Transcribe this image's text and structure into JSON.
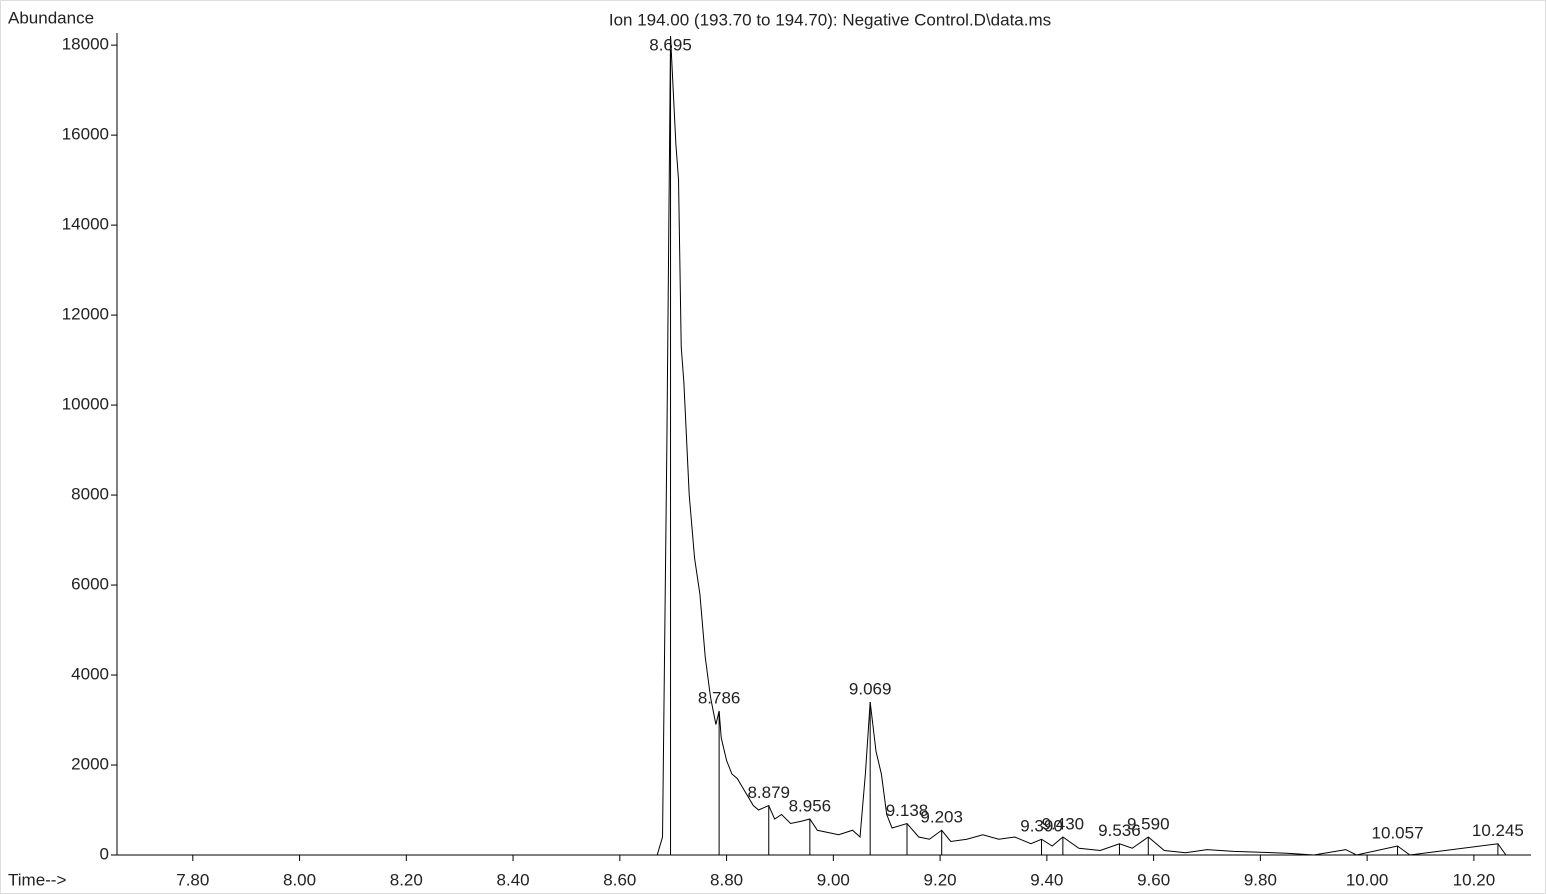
{
  "chart_data": {
    "type": "line",
    "title": "Ion 194.00 (193.70 to 194.70): Negative Control.D\\data.ms",
    "y_label": "Abundance",
    "x_label": "Time-->",
    "color": "#000000",
    "xlim": [
      7.658,
      10.307
    ],
    "ylim": [
      0,
      18270
    ],
    "xticks": [
      {
        "value": 7.8,
        "label": "7.80"
      },
      {
        "value": 8.0,
        "label": "8.00"
      },
      {
        "value": 8.2,
        "label": "8.20"
      },
      {
        "value": 8.4,
        "label": "8.40"
      },
      {
        "value": 8.6,
        "label": "8.60"
      },
      {
        "value": 8.8,
        "label": "8.80"
      },
      {
        "value": 9.0,
        "label": "9.00"
      },
      {
        "value": 9.2,
        "label": "9.20"
      },
      {
        "value": 9.4,
        "label": "9.40"
      },
      {
        "value": 9.6,
        "label": "9.60"
      },
      {
        "value": 9.8,
        "label": "9.80"
      },
      {
        "value": 10.0,
        "label": "10.00"
      },
      {
        "value": 10.2,
        "label": "10.20"
      }
    ],
    "yticks": [
      0,
      2000,
      4000,
      6000,
      8000,
      10000,
      12000,
      14000,
      16000,
      18000
    ],
    "x": [
      7.658,
      8.67,
      8.68,
      8.688,
      8.695,
      8.7,
      8.705,
      8.71,
      8.715,
      8.72,
      8.73,
      8.74,
      8.75,
      8.76,
      8.77,
      8.78,
      8.786,
      8.79,
      8.8,
      8.81,
      8.82,
      8.83,
      8.84,
      8.85,
      8.86,
      8.879,
      8.89,
      8.903,
      8.92,
      8.94,
      8.956,
      8.97,
      8.99,
      9.01,
      9.036,
      9.05,
      9.06,
      9.069,
      9.08,
      9.09,
      9.1,
      9.11,
      9.138,
      9.16,
      9.18,
      9.203,
      9.22,
      9.25,
      9.28,
      9.31,
      9.34,
      9.37,
      9.39,
      9.41,
      9.43,
      9.46,
      9.5,
      9.536,
      9.56,
      9.59,
      9.62,
      9.66,
      9.7,
      9.75,
      9.8,
      9.85,
      9.9,
      9.96,
      9.98,
      10.057,
      10.08,
      10.245,
      10.26,
      10.307
    ],
    "values": [
      0,
      0,
      400,
      9000,
      18200,
      17000,
      15800,
      15000,
      11300,
      10500,
      8000,
      6600,
      5800,
      4400,
      3500,
      2900,
      3200,
      2600,
      2100,
      1800,
      1700,
      1500,
      1300,
      1100,
      1000,
      1100,
      800,
      900,
      700,
      750,
      800,
      550,
      500,
      450,
      550,
      400,
      1800,
      3400,
      2300,
      1800,
      900,
      600,
      700,
      400,
      350,
      550,
      300,
      350,
      450,
      350,
      400,
      250,
      350,
      200,
      400,
      150,
      100,
      250,
      150,
      400,
      100,
      50,
      120,
      80,
      60,
      40,
      0,
      120,
      0,
      200,
      0,
      250,
      0,
      0
    ],
    "peaks": [
      {
        "x": 8.695,
        "y": 18200,
        "label": "8.695"
      },
      {
        "x": 8.786,
        "y": 3200,
        "label": "8.786"
      },
      {
        "x": 8.879,
        "y": 1100,
        "label": "8.879"
      },
      {
        "x": 8.956,
        "y": 800,
        "label": "8.956"
      },
      {
        "x": 9.069,
        "y": 3400,
        "label": "9.069"
      },
      {
        "x": 9.138,
        "y": 700,
        "label": "9.138"
      },
      {
        "x": 9.203,
        "y": 550,
        "label": "9.203"
      },
      {
        "x": 9.39,
        "y": 350,
        "label": "9.390"
      },
      {
        "x": 9.43,
        "y": 400,
        "label": "9.430"
      },
      {
        "x": 9.536,
        "y": 250,
        "label": "9.536"
      },
      {
        "x": 9.59,
        "y": 400,
        "label": "9.590"
      },
      {
        "x": 10.057,
        "y": 200,
        "label": "10.057"
      },
      {
        "x": 10.245,
        "y": 250,
        "label": "10.245"
      }
    ]
  }
}
